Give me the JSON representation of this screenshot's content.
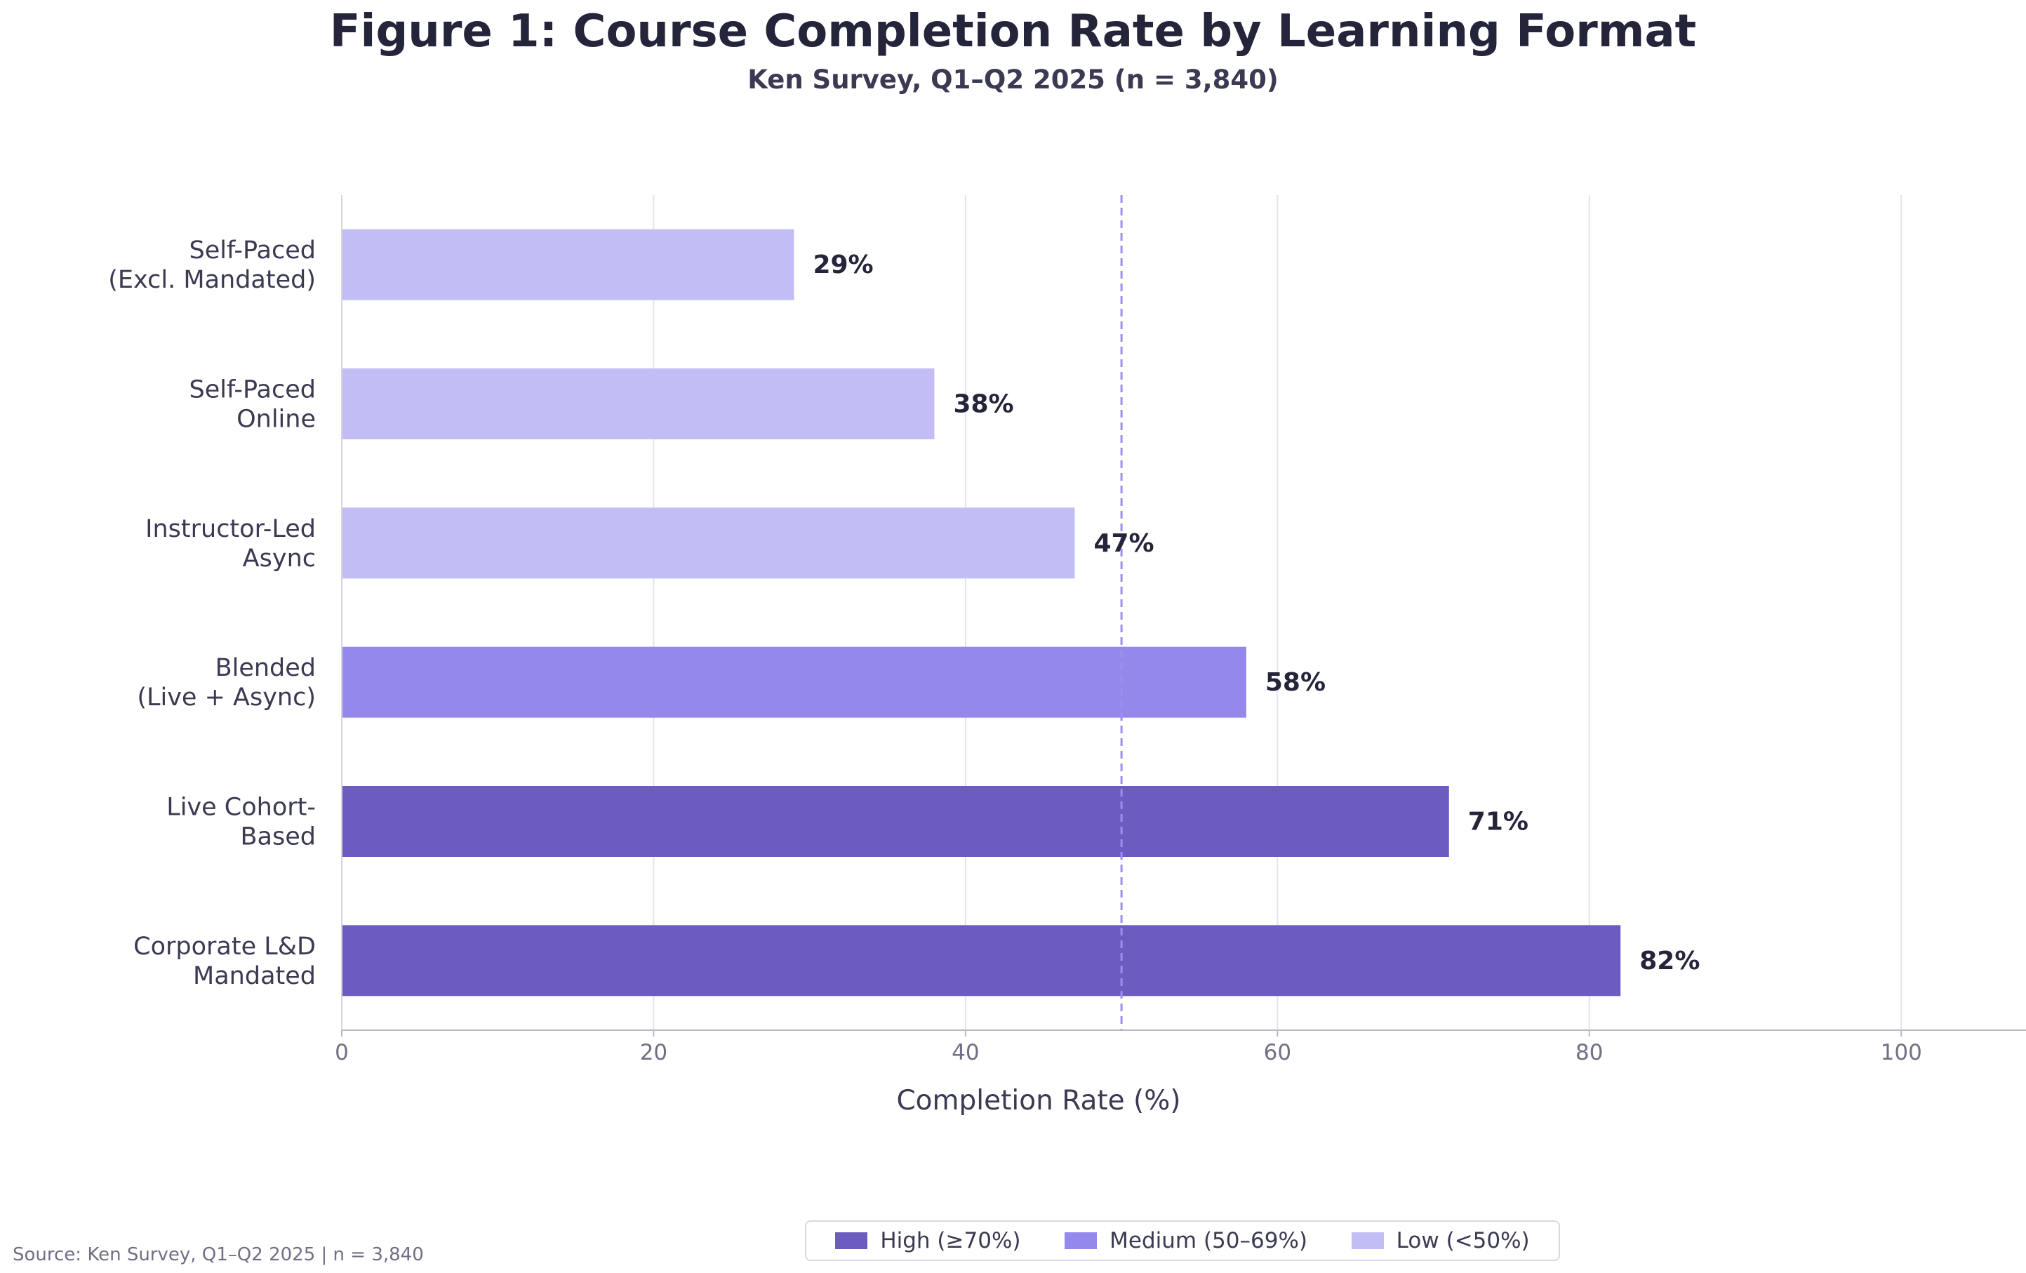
{
  "chart_data": {
    "type": "bar",
    "orientation": "horizontal",
    "title": "Figure 1: Course Completion Rate by Learning Format",
    "subtitle": "Ken Survey, Q1–Q2 2025  (n = 3,840)",
    "xlabel": "Completion Rate (%)",
    "ylabel": "",
    "xlim": [
      0,
      108
    ],
    "xticks": [
      0,
      20,
      40,
      60,
      80,
      100
    ],
    "grid": "x",
    "reference_line": {
      "value": 50,
      "style": "dashed",
      "color": "#9b8ff0"
    },
    "categories": [
      [
        "Self-Paced",
        "(Excl. Mandated)"
      ],
      [
        "Self-Paced",
        "Online"
      ],
      [
        "Instructor-Led",
        "Async"
      ],
      [
        "Blended",
        "(Live + Async)"
      ],
      [
        "Live Cohort-",
        "Based"
      ],
      [
        "Corporate L&D",
        "Mandated"
      ]
    ],
    "values": [
      29,
      38,
      47,
      58,
      71,
      82
    ],
    "value_labels": [
      "29%",
      "38%",
      "47%",
      "58%",
      "71%",
      "82%"
    ],
    "bar_tiers": [
      "low",
      "low",
      "low",
      "medium",
      "high",
      "high"
    ],
    "colors": {
      "high": "#6c5bc0",
      "medium": "#9488ec",
      "low": "#c3bdf5"
    },
    "legend": {
      "placement": "bottom-center",
      "entries": [
        {
          "tier": "high",
          "label": "High (≥70%)"
        },
        {
          "tier": "medium",
          "label": "Medium (50–69%)"
        },
        {
          "tier": "low",
          "label": "Low (<50%)"
        }
      ]
    }
  },
  "footer": {
    "source": "Source: Ken Survey, Q1–Q2 2025  |  n = 3,840"
  }
}
